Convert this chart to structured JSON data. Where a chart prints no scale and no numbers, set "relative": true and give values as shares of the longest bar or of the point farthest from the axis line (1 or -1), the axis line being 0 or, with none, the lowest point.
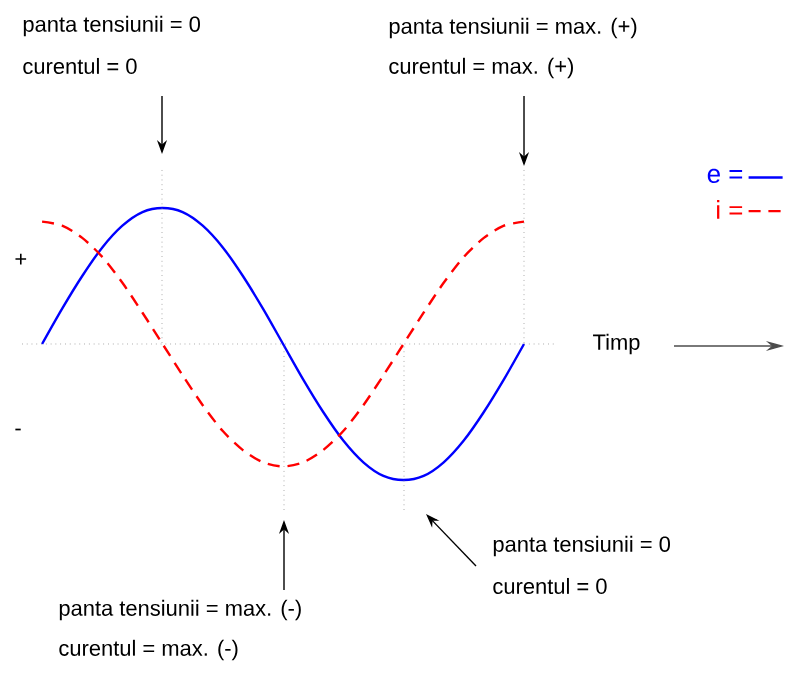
{
  "chart_data": {
    "type": "line",
    "relative": true,
    "xlabel": "Timp",
    "categories": [
      null,
      null,
      null,
      null,
      null,
      null,
      null,
      null,
      null,
      null,
      null,
      null,
      null,
      null,
      null,
      null,
      null,
      null,
      null,
      null,
      null,
      null,
      null,
      null,
      null
    ],
    "series": [
      {
        "name": "e =",
        "color": "#0000ff",
        "line_style": "solid",
        "values": [
          0,
          0.26,
          0.5,
          0.71,
          0.87,
          0.97,
          1,
          0.97,
          0.87,
          0.71,
          0.5,
          0.26,
          0,
          -0.26,
          -0.5,
          -0.71,
          -0.87,
          -0.97,
          -1,
          -0.97,
          -0.87,
          -0.71,
          -0.5,
          -0.26,
          0
        ]
      },
      {
        "name": "i =",
        "color": "#ff0000",
        "line_style": "dashed",
        "values": [
          0.9,
          0.87,
          0.78,
          0.64,
          0.45,
          0.23,
          0,
          -0.23,
          -0.45,
          -0.64,
          -0.78,
          -0.87,
          -0.9,
          -0.87,
          -0.78,
          -0.64,
          -0.45,
          -0.23,
          0,
          0.23,
          0.45,
          0.64,
          0.78,
          0.87,
          0.9
        ]
      }
    ],
    "legend": "top right",
    "marker": "none",
    "ref_lines": [
      {
        "axis": "y",
        "value": 0,
        "color": "#808080",
        "line_style": "dotted"
      }
    ],
    "annotations": [
      "panta tensiunii = 0",
      "curentul = 0",
      "panta tensiunii = max. (+)",
      "curentul = max. (+)",
      "panta tensiunii = max. (-)",
      "curentul = max. (-)",
      "panta tensiunii = 0",
      "curentul = 0",
      "+",
      "-"
    ]
  }
}
